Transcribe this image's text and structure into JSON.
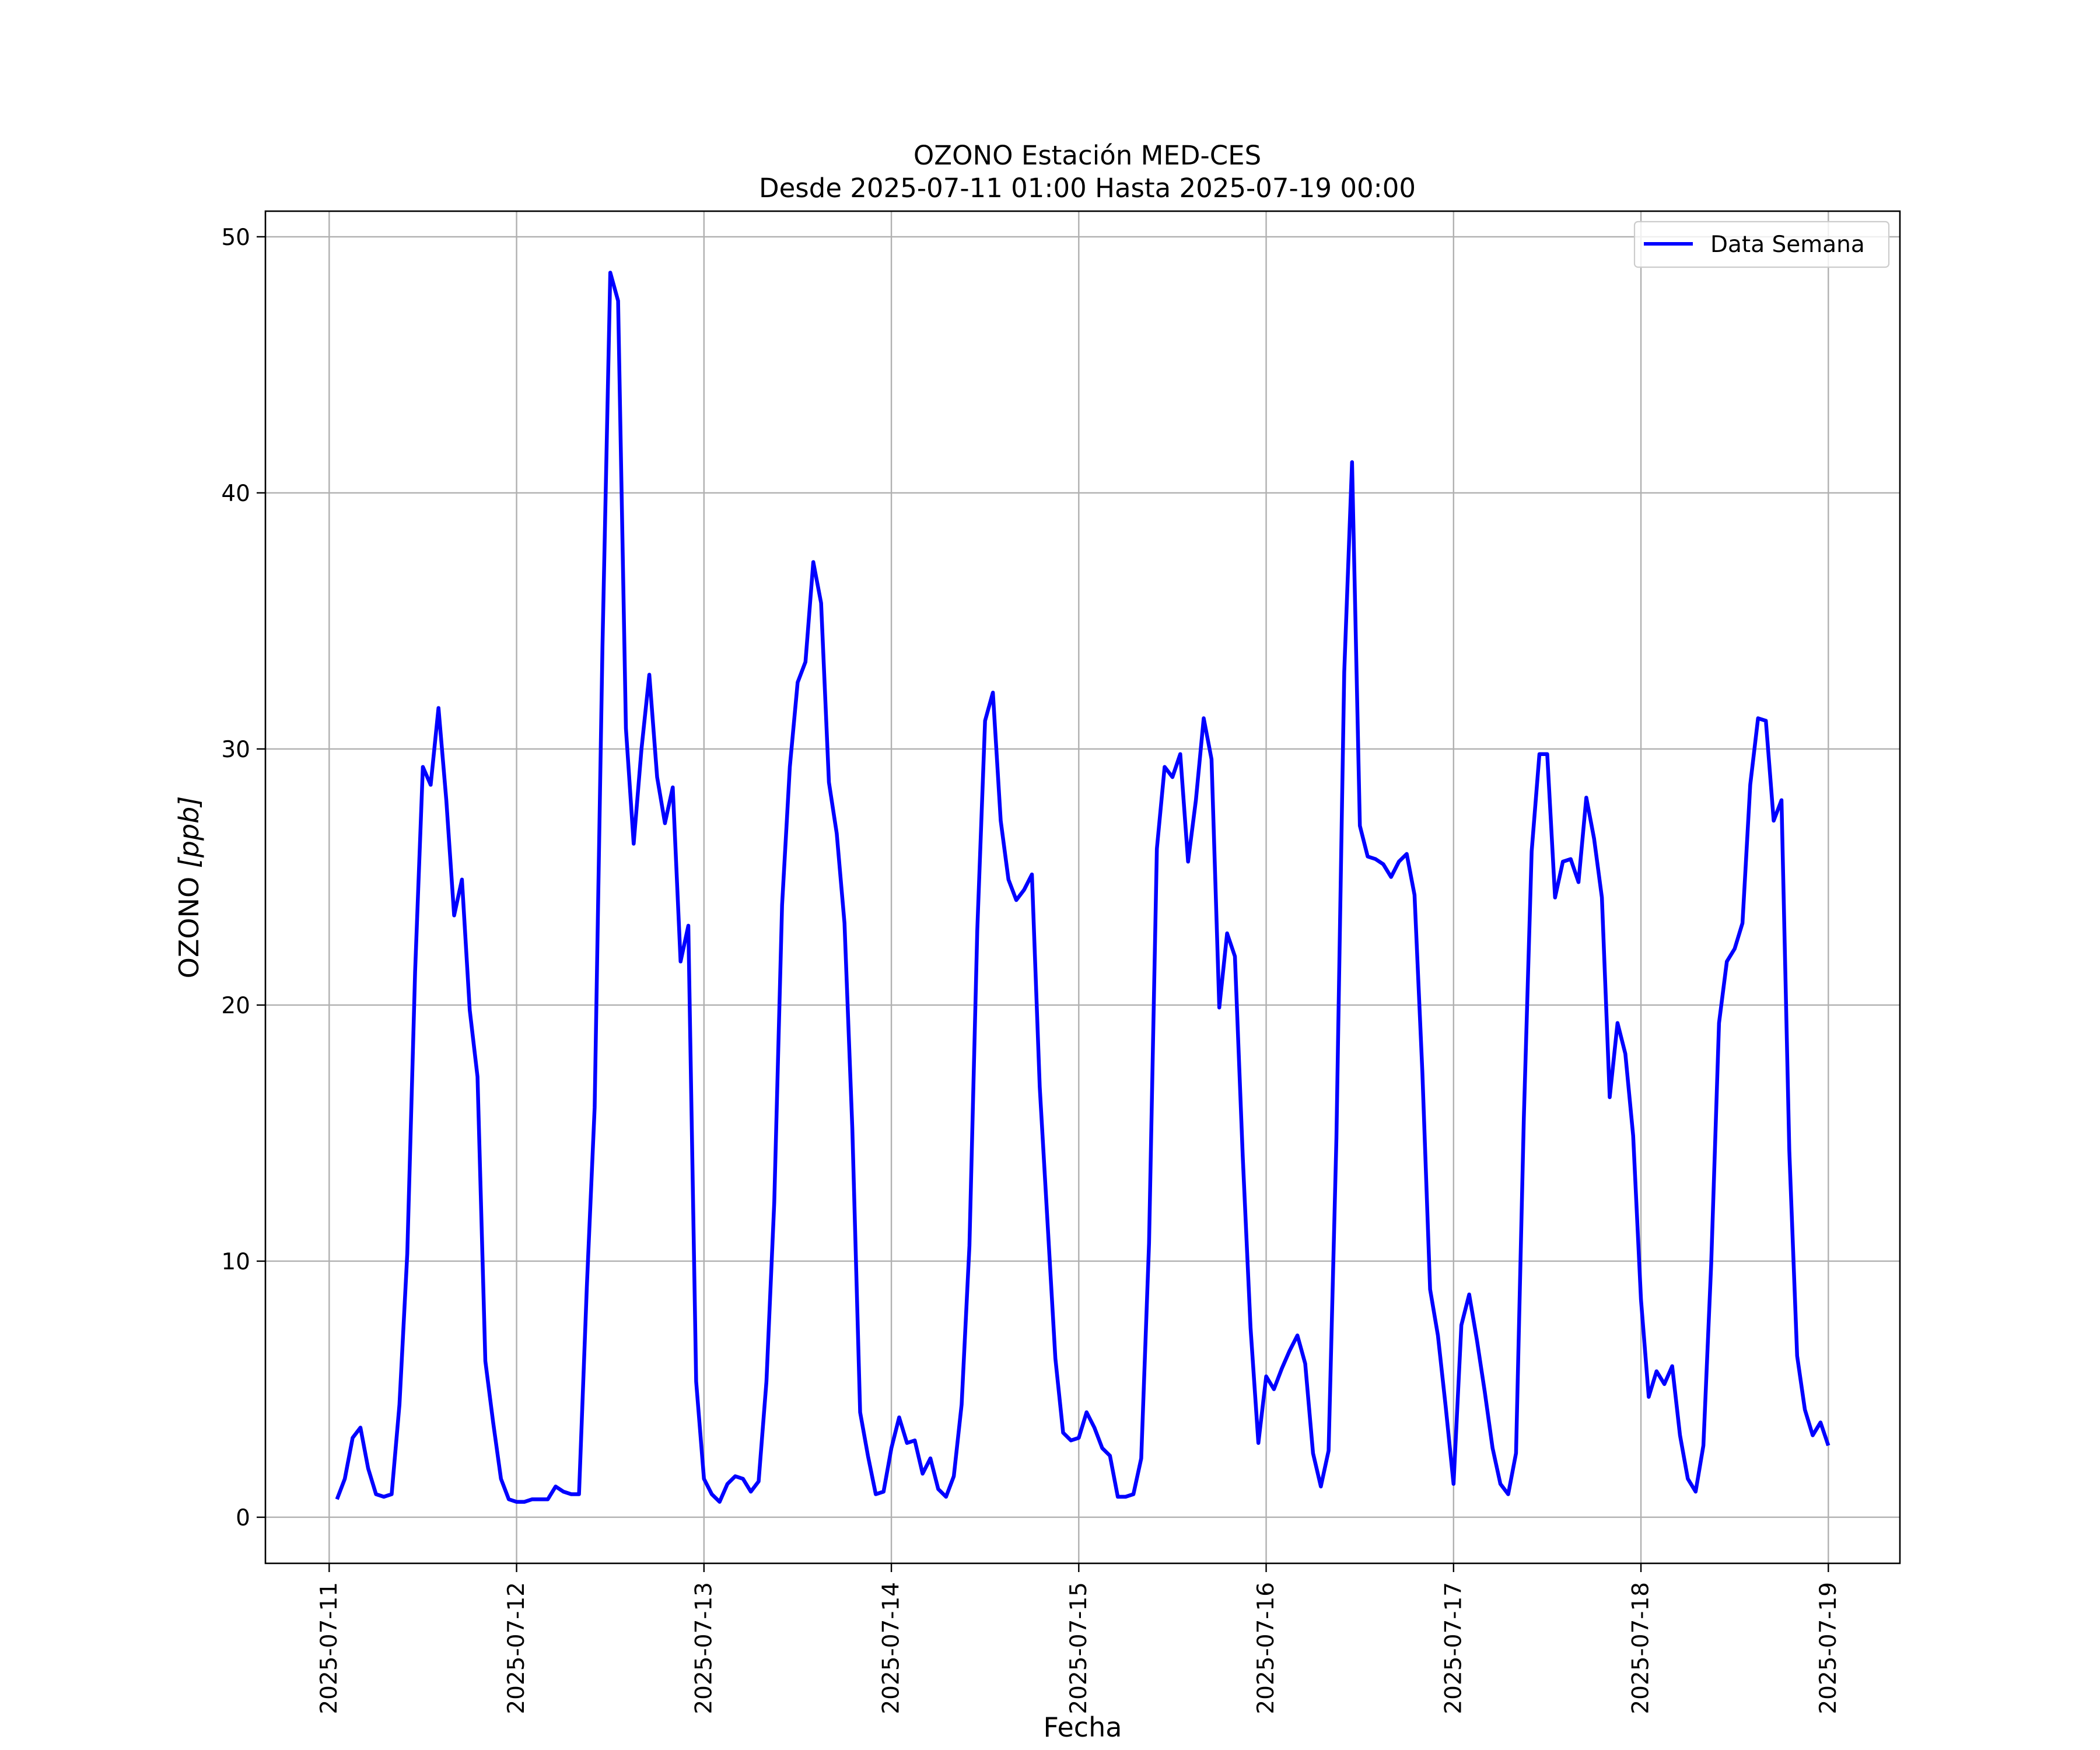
{
  "chart_data": {
    "type": "line",
    "title": "OZONO Estación MED-CES",
    "subtitle": "Desde 2025-07-11 01:00 Hasta 2025-07-19 00:00",
    "xlabel": "Fecha",
    "ylabel_text": "OZONO",
    "ylabel_unit": "[ppb]",
    "x_ticks": [
      "2025-07-11",
      "2025-07-12",
      "2025-07-13",
      "2025-07-14",
      "2025-07-15",
      "2025-07-16",
      "2025-07-17",
      "2025-07-18",
      "2025-07-19"
    ],
    "y_ticks": [
      0,
      10,
      20,
      30,
      40,
      50
    ],
    "xlim": [
      "2025-07-10 15:50",
      "2025-07-19 09:10"
    ],
    "ylim": [
      -1.8,
      51.0
    ],
    "grid": true,
    "legend_position": "top-right",
    "line_color": "#0000ff",
    "x_start": "2025-07-11 01:00",
    "x_step_hours": 1,
    "series": [
      {
        "name": "Data Semana",
        "values": [
          0.7,
          1.5,
          3.1,
          3.5,
          1.9,
          0.9,
          0.8,
          0.9,
          4.4,
          10.3,
          21.3,
          29.3,
          28.6,
          31.6,
          28.0,
          23.5,
          24.9,
          19.8,
          17.2,
          6.1,
          3.7,
          1.5,
          0.7,
          0.6,
          0.6,
          0.7,
          0.7,
          0.7,
          1.2,
          1.0,
          0.9,
          0.9,
          9.0,
          16.0,
          34.0,
          48.6,
          47.5,
          30.8,
          26.3,
          30.0,
          32.9,
          28.9,
          27.1,
          28.5,
          21.7,
          23.1,
          5.3,
          1.5,
          0.9,
          0.6,
          1.3,
          1.6,
          1.5,
          1.0,
          1.4,
          5.3,
          12.3,
          23.9,
          29.3,
          32.6,
          33.4,
          37.3,
          35.7,
          28.7,
          26.7,
          23.2,
          15.2,
          4.1,
          2.4,
          0.9,
          1.0,
          2.7,
          3.9,
          2.9,
          3.0,
          1.7,
          2.3,
          1.1,
          0.8,
          1.6,
          4.4,
          10.6,
          22.9,
          31.1,
          32.2,
          27.2,
          24.9,
          24.1,
          24.5,
          25.1,
          16.8,
          11.5,
          6.2,
          3.3,
          3.0,
          3.1,
          4.1,
          3.5,
          2.7,
          2.4,
          0.8,
          0.8,
          0.9,
          2.3,
          10.7,
          26.1,
          29.3,
          28.9,
          29.8,
          25.6,
          28.0,
          31.2,
          29.6,
          19.9,
          22.8,
          21.9,
          14.1,
          7.4,
          2.9,
          5.5,
          5.0,
          5.8,
          6.5,
          7.1,
          6.0,
          2.5,
          1.2,
          2.6,
          14.8,
          33.0,
          41.2,
          27.0,
          25.8,
          25.7,
          25.5,
          25.0,
          25.6,
          25.9,
          24.3,
          17.4,
          8.9,
          7.1,
          4.3,
          1.3,
          7.5,
          8.7,
          6.9,
          4.9,
          2.7,
          1.3,
          0.9,
          2.5,
          15.6,
          26.0,
          29.8,
          29.8,
          24.2,
          25.6,
          25.7,
          24.8,
          28.1,
          26.5,
          24.2,
          16.4,
          19.3,
          18.1,
          14.9,
          8.5,
          4.7,
          5.7,
          5.2,
          5.9,
          3.2,
          1.5,
          1.0,
          2.8,
          9.9,
          19.3,
          21.7,
          22.2,
          23.2,
          28.6,
          31.2,
          31.1,
          27.2,
          28.0,
          14.3,
          6.3,
          4.2,
          3.2,
          3.7,
          2.8
        ]
      }
    ]
  }
}
